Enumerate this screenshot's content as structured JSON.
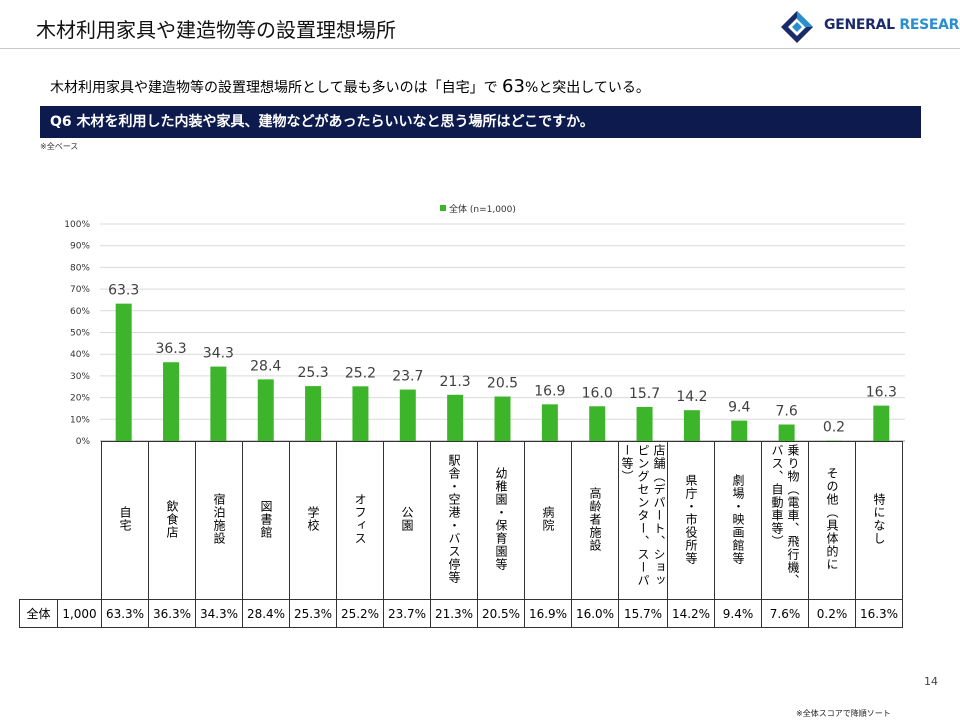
{
  "header": {
    "title": "木材利用家具や建造物等の設置理想場所",
    "logo_text_a": "GENERAL ",
    "logo_text_b": "RESEARCH"
  },
  "summary": {
    "before": "木材利用家具や建造物等の設置理想場所として最も多いのは「自宅」で",
    "figure": "63",
    "after": "%と突出している。"
  },
  "question": "Q6 木材を利用した内装や家具、建物などがあったらいいなと思う場所はどこですか。",
  "base_note": "※全ベース",
  "footer": {
    "page_number": "14",
    "sort_note": "※全体スコアで降順ソート"
  },
  "colors": {
    "bar": "#3cb52a",
    "question_band": "#0d1a4e",
    "logo_dark": "#1b2a6b",
    "logo_light": "#2a8fd0"
  },
  "chart_data": {
    "type": "bar",
    "categories": [
      "自宅",
      "飲食店",
      "宿泊施設",
      "図書館",
      "学校",
      "オフィス",
      "公園",
      "駅舎・空港・バス停等",
      "幼稚園・保育園等",
      "病院",
      "高齢者施設",
      "店舗（デパート、ショッピングセンター、スーパー等）",
      "県庁・市役所等",
      "劇場・映画館等",
      "乗り物（電車、飛行機、バス、自動車等）",
      "その他（具体的に",
      "特になし"
    ],
    "series": [
      {
        "name": "全体 (n=1,000)",
        "values": [
          63.3,
          36.3,
          34.3,
          28.4,
          25.3,
          25.2,
          23.7,
          21.3,
          20.5,
          16.9,
          16.0,
          15.7,
          14.2,
          9.4,
          7.6,
          0.2,
          16.3
        ]
      }
    ],
    "data_labels": [
      "63.3",
      "36.3",
      "34.3",
      "28.4",
      "25.3",
      "25.2",
      "23.7",
      "21.3",
      "20.5",
      "16.9",
      "16.0",
      "15.7",
      "14.2",
      "9.4",
      "7.6",
      "0.2",
      "16.3"
    ],
    "y_ticks": [
      "0%",
      "10%",
      "20%",
      "30%",
      "40%",
      "50%",
      "60%",
      "70%",
      "80%",
      "90%",
      "100%"
    ],
    "ylim": [
      0,
      100
    ],
    "grid": true,
    "legend_position": "top-center"
  },
  "table": {
    "row_label": "全体",
    "n": "1,000",
    "percents": [
      "63.3%",
      "36.3%",
      "34.3%",
      "28.4%",
      "25.3%",
      "25.2%",
      "23.7%",
      "21.3%",
      "20.5%",
      "16.9%",
      "16.0%",
      "15.7%",
      "14.2%",
      "9.4%",
      "7.6%",
      "0.2%",
      "16.3%"
    ]
  }
}
